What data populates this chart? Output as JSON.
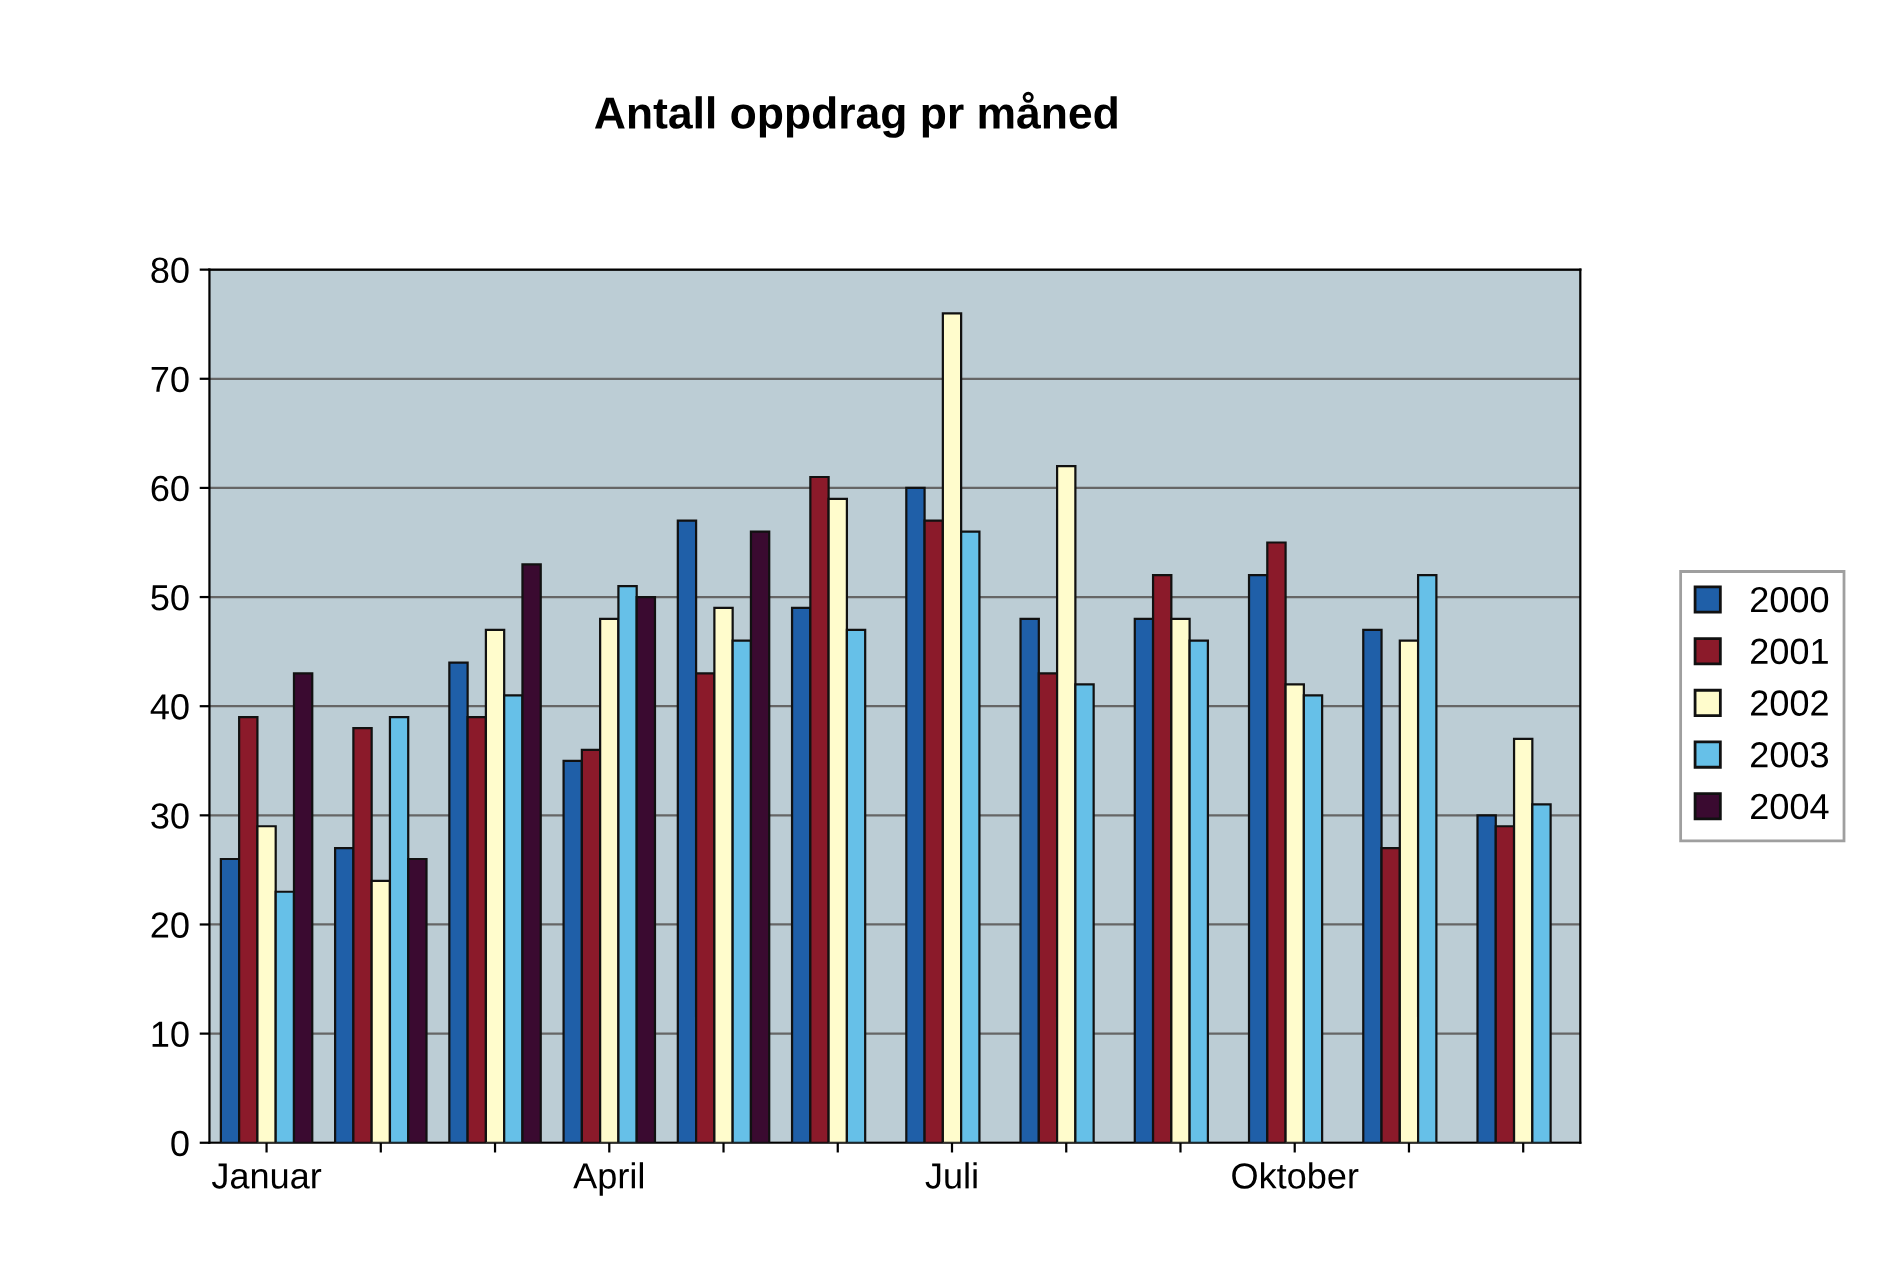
{
  "chart_data": {
    "type": "bar",
    "title": "Antall oppdrag pr måned",
    "categories": [
      "Januar",
      null,
      null,
      "April",
      null,
      null,
      "Juli",
      null,
      null,
      "Oktober",
      null,
      null
    ],
    "series": [
      {
        "name": "2000",
        "color": "#1f5fa8",
        "values": [
          26,
          27,
          44,
          35,
          57,
          49,
          60,
          48,
          48,
          52,
          47,
          30
        ]
      },
      {
        "name": "2001",
        "color": "#8b1a2a",
        "values": [
          39,
          38,
          39,
          36,
          43,
          61,
          57,
          43,
          52,
          55,
          27,
          29
        ]
      },
      {
        "name": "2002",
        "color": "#fffccc",
        "values": [
          29,
          24,
          47,
          48,
          49,
          59,
          76,
          62,
          48,
          42,
          46,
          37
        ]
      },
      {
        "name": "2003",
        "color": "#66c0e8",
        "values": [
          23,
          39,
          41,
          51,
          46,
          47,
          56,
          42,
          46,
          41,
          52,
          31
        ]
      },
      {
        "name": "2004",
        "color": "#3a0a30",
        "values": [
          43,
          26,
          53,
          50,
          56,
          null,
          null,
          null,
          null,
          null,
          null,
          null
        ]
      }
    ],
    "ylim": [
      0,
      80
    ],
    "yticks": [
      0,
      10,
      20,
      30,
      40,
      50,
      60,
      70,
      80
    ],
    "grid": "y",
    "legend": "right"
  }
}
